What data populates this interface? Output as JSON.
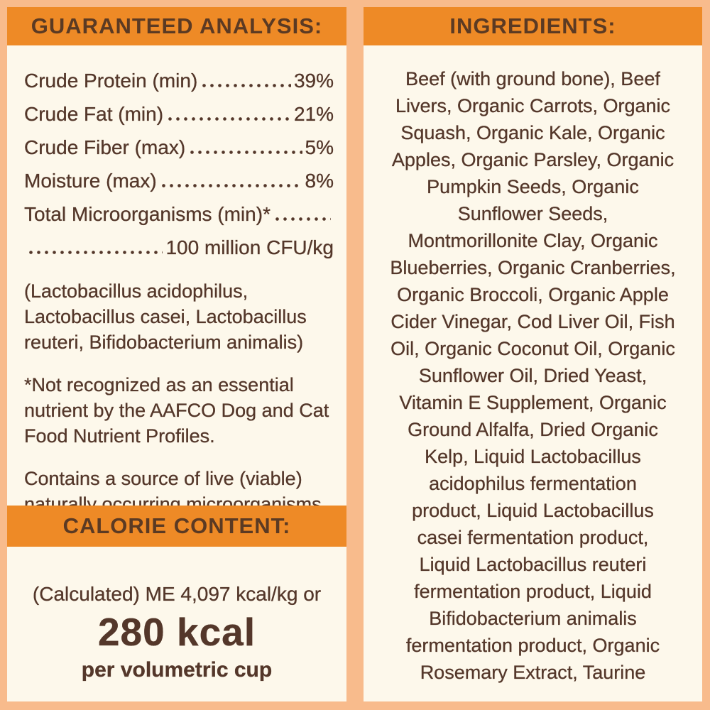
{
  "colors": {
    "background": "#F8BB8C",
    "panel": "#FDF8EB",
    "band": "#EE8A26",
    "header_text": "#5B3A23",
    "body_text": "#54372A"
  },
  "guaranteed_analysis": {
    "title": "GUARANTEED ANALYSIS:",
    "rows": [
      {
        "label": "Crude Protein (min)",
        "value": "39%"
      },
      {
        "label": "Crude Fat (min)",
        "value": "21%"
      },
      {
        "label": "Crude Fiber (max)",
        "value": "5%"
      },
      {
        "label": "Moisture (max)",
        "value": "8%"
      }
    ],
    "microorganisms": {
      "label": "Total Microorganisms (min)*",
      "value": "100 million CFU/kg"
    },
    "species_note": "(Lactobacillus acidophilus,\nLactobacillus casei, Lactobacillus\nreuteri, Bifidobacterium animalis)",
    "aafco_note": "*Not recognized as an essential\nnutrient by the AAFCO Dog and Cat\nFood Nutrient Profiles.",
    "viable_note": "Contains a source of live (viable)\nnaturally occurring microorganisms"
  },
  "calorie_content": {
    "title": "CALORIE CONTENT:",
    "line1": "(Calculated) ME 4,097 kcal/kg or",
    "kcal": "280 kcal",
    "unit": "per volumetric cup"
  },
  "ingredients": {
    "title": "INGREDIENTS:",
    "text": "Beef (with ground bone), Beef\nLivers, Organic Carrots, Organic\nSquash, Organic Kale, Organic\nApples, Organic Parsley, Organic\nPumpkin Seeds, Organic\nSunflower Seeds,\nMontmorillonite Clay, Organic\nBlueberries, Organic Cranberries,\nOrganic Broccoli, Organic Apple\nCider Vinegar, Cod Liver Oil, Fish\nOil, Organic Coconut Oil, Organic\nSunflower Oil, Dried Yeast,\nVitamin E Supplement, Organic\nGround Alfalfa, Dried Organic\nKelp, Liquid Lactobacillus\nacidophilus fermentation\nproduct, Liquid Lactobacillus\ncasei fermentation product,\nLiquid Lactobacillus reuteri\nfermentation product, Liquid\nBifidobacterium animalis\nfermentation product, Organic\nRosemary Extract, Taurine"
  }
}
